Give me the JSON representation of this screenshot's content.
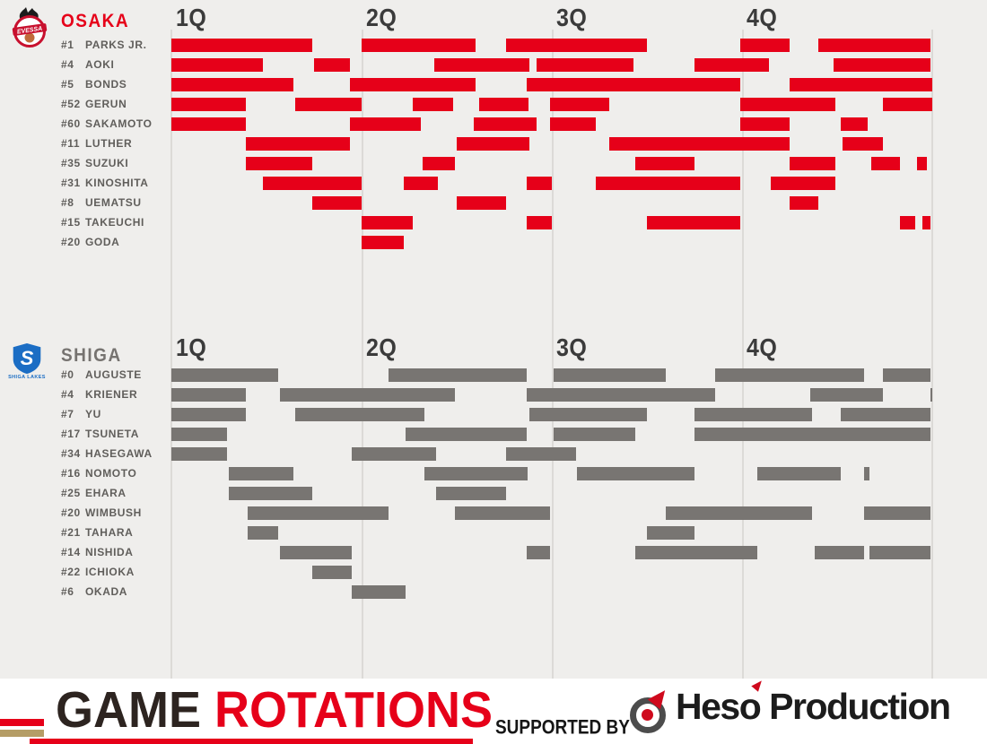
{
  "quarters": [
    "1Q",
    "2Q",
    "3Q",
    "4Q"
  ],
  "colors": {
    "osaka_red": "#e60019",
    "shiga_gray": "#787572",
    "background": "#efeeec",
    "footer_bg": "#ffffff",
    "gold_stripe": "#b59d66",
    "title_dark": "#2d2420",
    "quarter_label": "#3b3b3b",
    "player_label": "#605e5b",
    "shiga_blue": "#1b6dc4"
  },
  "chart_data": [
    {
      "type": "gantt",
      "team": "OSAKA",
      "logo_caption": "EVESSA",
      "color": "#e60019",
      "unit": "game time in quarters (0-4), each quarter = 10 min",
      "players": [
        {
          "number": "#1",
          "name": "PARKS JR.",
          "segments": [
            [
              0.0,
              0.74
            ],
            [
              1.0,
              1.6
            ],
            [
              1.76,
              2.5
            ],
            [
              2.99,
              3.25
            ],
            [
              3.4,
              3.99
            ]
          ]
        },
        {
          "number": "#4",
          "name": "AOKI",
          "segments": [
            [
              0.0,
              0.48
            ],
            [
              0.75,
              0.94
            ],
            [
              1.38,
              1.88
            ],
            [
              1.92,
              2.43
            ],
            [
              2.75,
              3.14
            ],
            [
              3.48,
              3.99
            ]
          ]
        },
        {
          "number": "#5",
          "name": "BONDS",
          "segments": [
            [
              0.0,
              0.64
            ],
            [
              0.94,
              1.6
            ],
            [
              1.87,
              2.99
            ],
            [
              3.25,
              4.0
            ]
          ]
        },
        {
          "number": "#52",
          "name": "GERUN",
          "segments": [
            [
              0.0,
              0.39
            ],
            [
              0.65,
              1.0
            ],
            [
              1.27,
              1.48
            ],
            [
              1.62,
              1.88
            ],
            [
              1.99,
              2.3
            ],
            [
              2.99,
              3.49
            ],
            [
              3.74,
              4.0
            ]
          ]
        },
        {
          "number": "#60",
          "name": "SAKAMOTO",
          "segments": [
            [
              0.0,
              0.39
            ],
            [
              0.94,
              1.31
            ],
            [
              1.59,
              1.92
            ],
            [
              1.99,
              2.23
            ],
            [
              2.99,
              3.25
            ],
            [
              3.52,
              3.66
            ]
          ]
        },
        {
          "number": "#11",
          "name": "LUTHER",
          "segments": [
            [
              0.39,
              0.94
            ],
            [
              1.5,
              1.88
            ],
            [
              2.3,
              3.25
            ],
            [
              3.53,
              3.74
            ]
          ]
        },
        {
          "number": "#35",
          "name": "SUZUKI",
          "segments": [
            [
              0.39,
              0.74
            ],
            [
              1.32,
              1.49
            ],
            [
              2.44,
              2.75
            ],
            [
              3.25,
              3.49
            ],
            [
              3.68,
              3.83
            ],
            [
              3.92,
              3.97
            ]
          ]
        },
        {
          "number": "#31",
          "name": "KINOSHITA",
          "segments": [
            [
              0.48,
              1.0
            ],
            [
              1.22,
              1.4
            ],
            [
              1.87,
              2.0
            ],
            [
              2.23,
              2.99
            ],
            [
              3.15,
              3.49
            ]
          ]
        },
        {
          "number": "#8",
          "name": "UEMATSU",
          "segments": [
            [
              0.74,
              1.0
            ],
            [
              1.5,
              1.76
            ],
            [
              3.25,
              3.4
            ]
          ]
        },
        {
          "number": "#15",
          "name": "TAKEUCHI",
          "segments": [
            [
              1.0,
              1.27
            ],
            [
              1.87,
              2.0
            ],
            [
              2.5,
              2.99
            ],
            [
              3.83,
              3.91
            ],
            [
              3.95,
              3.99
            ]
          ]
        },
        {
          "number": "#20",
          "name": "GODA",
          "segments": [
            [
              1.0,
              1.22
            ]
          ]
        }
      ]
    },
    {
      "type": "gantt",
      "team": "SHIGA",
      "logo_caption": "SHIGA LAKES",
      "logo_letter": "S",
      "color": "#787572",
      "unit": "game time in quarters (0-4), each quarter = 10 min",
      "players": [
        {
          "number": "#0",
          "name": "AUGUSTE",
          "segments": [
            [
              0.0,
              0.56
            ],
            [
              1.14,
              1.87
            ],
            [
              2.01,
              2.6
            ],
            [
              2.86,
              3.64
            ],
            [
              3.74,
              3.99
            ]
          ]
        },
        {
          "number": "#4",
          "name": "KRIENER",
          "segments": [
            [
              0.0,
              0.39
            ],
            [
              0.57,
              1.49
            ],
            [
              1.87,
              2.86
            ],
            [
              3.36,
              3.74
            ],
            [
              3.99,
              4.0
            ]
          ]
        },
        {
          "number": "#7",
          "name": "YU",
          "segments": [
            [
              0.0,
              0.39
            ],
            [
              0.65,
              1.33
            ],
            [
              1.88,
              2.5
            ],
            [
              2.75,
              3.37
            ],
            [
              3.52,
              3.99
            ]
          ]
        },
        {
          "number": "#17",
          "name": "TSUNETA",
          "segments": [
            [
              0.0,
              0.29
            ],
            [
              1.23,
              1.87
            ],
            [
              2.01,
              2.44
            ],
            [
              2.75,
              3.99
            ]
          ]
        },
        {
          "number": "#34",
          "name": "HASEGAWA",
          "segments": [
            [
              0.0,
              0.29
            ],
            [
              0.95,
              1.39
            ],
            [
              1.76,
              2.13
            ]
          ]
        },
        {
          "number": "#16",
          "name": "NOMOTO",
          "segments": [
            [
              0.3,
              0.64
            ],
            [
              1.33,
              1.87
            ],
            [
              2.13,
              2.75
            ],
            [
              3.08,
              3.52
            ],
            [
              3.64,
              3.67
            ]
          ]
        },
        {
          "number": "#25",
          "name": "EHARA",
          "segments": [
            [
              0.3,
              0.74
            ],
            [
              1.39,
              1.76
            ]
          ]
        },
        {
          "number": "#20",
          "name": "WIMBUSH",
          "segments": [
            [
              0.4,
              1.14
            ],
            [
              1.49,
              1.99
            ],
            [
              2.6,
              3.37
            ],
            [
              3.64,
              3.99
            ]
          ]
        },
        {
          "number": "#21",
          "name": "TAHARA",
          "segments": [
            [
              0.4,
              0.56
            ],
            [
              2.5,
              2.75
            ]
          ]
        },
        {
          "number": "#14",
          "name": "NISHIDA",
          "segments": [
            [
              0.57,
              0.95
            ],
            [
              1.87,
              1.99
            ],
            [
              2.44,
              3.08
            ],
            [
              3.38,
              3.64
            ],
            [
              3.67,
              3.99
            ]
          ]
        },
        {
          "number": "#22",
          "name": "ICHIOKA",
          "segments": [
            [
              0.74,
              0.95
            ]
          ]
        },
        {
          "number": "#6",
          "name": "OKADA",
          "segments": [
            [
              0.95,
              1.23
            ]
          ]
        }
      ]
    }
  ],
  "footer": {
    "title_dark": "GAME",
    "title_red": "ROTATIONS",
    "supported_by": "SUPPORTED BY",
    "sponsor_pre": "Hes",
    "sponsor_o": "o",
    "sponsor_post": " Production"
  }
}
